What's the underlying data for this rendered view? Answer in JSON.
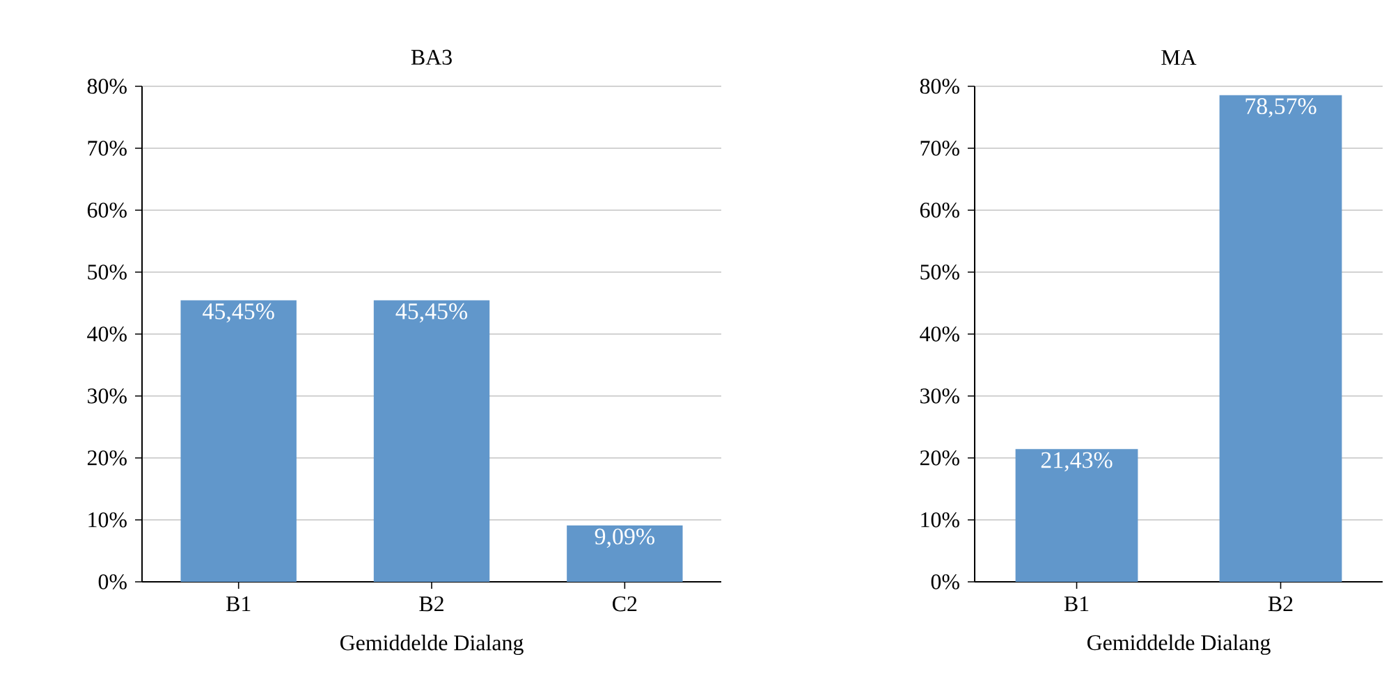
{
  "chart_data": [
    {
      "type": "bar",
      "title": "BA3",
      "xlabel": "Gemiddelde Dialang",
      "categories": [
        "B1",
        "B2",
        "C2"
      ],
      "values": [
        45.45,
        45.45,
        9.09
      ],
      "value_labels": [
        "45,45%",
        "45,45%",
        "9,09%"
      ],
      "color": "#6197cb",
      "ylim": [
        0,
        80
      ],
      "yticks": [
        {
          "value": 0,
          "label": "0%"
        },
        {
          "value": 10,
          "label": "10%"
        },
        {
          "value": 20,
          "label": "20%"
        },
        {
          "value": 30,
          "label": "30%"
        },
        {
          "value": 40,
          "label": "40%"
        },
        {
          "value": 50,
          "label": "50%"
        },
        {
          "value": 60,
          "label": "60%"
        },
        {
          "value": 70,
          "label": "70%"
        },
        {
          "value": 80,
          "label": "80%"
        }
      ],
      "grid": "y"
    },
    {
      "type": "bar",
      "title": "MA",
      "xlabel": "Gemiddelde Dialang",
      "categories": [
        "B1",
        "B2"
      ],
      "values": [
        21.43,
        78.57
      ],
      "value_labels": [
        "21,43%",
        "78,57%"
      ],
      "color": "#6197cb",
      "ylim": [
        0,
        80
      ],
      "yticks": [
        {
          "value": 0,
          "label": "0%"
        },
        {
          "value": 10,
          "label": "10%"
        },
        {
          "value": 20,
          "label": "20%"
        },
        {
          "value": 30,
          "label": "30%"
        },
        {
          "value": 40,
          "label": "40%"
        },
        {
          "value": 50,
          "label": "50%"
        },
        {
          "value": 60,
          "label": "60%"
        },
        {
          "value": 70,
          "label": "70%"
        },
        {
          "value": 80,
          "label": "80%"
        }
      ],
      "grid": "y"
    }
  ]
}
